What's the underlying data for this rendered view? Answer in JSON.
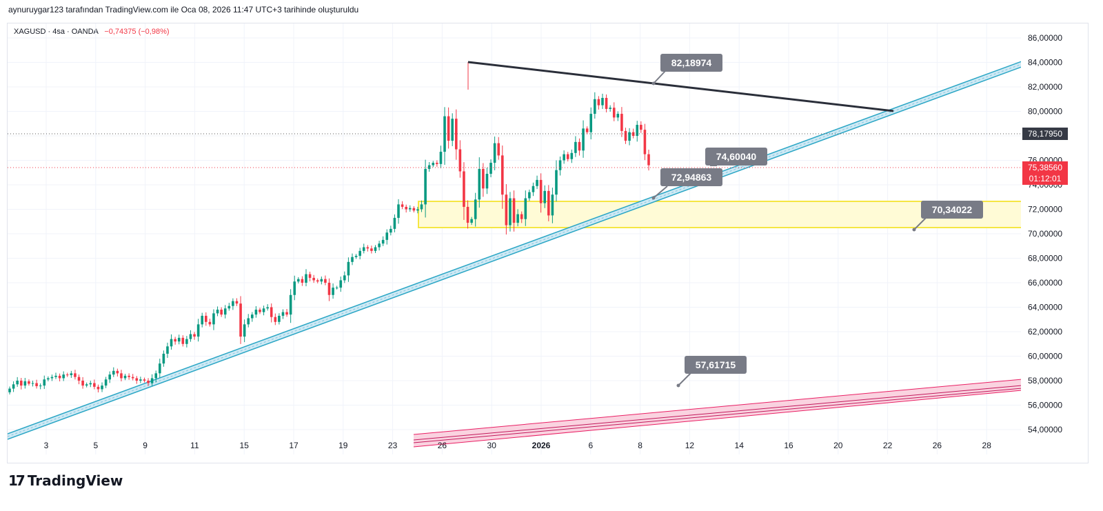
{
  "header": {
    "created_by": "aynuruygar123 tarafından TradingView.com ile Oca 08, 2026 11:47 UTC+3 tarihinde oluşturuldu"
  },
  "legend": {
    "symbol": "XAGUSD · 4sa · OANDA",
    "change": "−0,74375 (−0,98%)"
  },
  "brand": {
    "logo_mark": "17",
    "name": "TradingView"
  },
  "colors": {
    "up": "#089981",
    "down": "#f23645",
    "trend": "#2aa6c5",
    "zone": "#f5e642",
    "pink": "#e91e63",
    "label_bg": "#787b86"
  },
  "chart_data": {
    "type": "candlestick",
    "symbol": "XAGUSD",
    "interval": "4sa",
    "ylim": [
      53.5,
      87.2
    ],
    "y_ticks": [
      "54,00000",
      "56,00000",
      "58,00000",
      "60,00000",
      "62,00000",
      "64,00000",
      "66,00000",
      "68,00000",
      "70,00000",
      "72,00000",
      "74,00000",
      "76,00000",
      "78,00000",
      "80,00000",
      "82,00000",
      "84,00000",
      "86,00000"
    ],
    "x_ticks": [
      "3",
      "5",
      "9",
      "11",
      "15",
      "17",
      "19",
      "23",
      "26",
      "30",
      "2026",
      "6",
      "8",
      "12",
      "14",
      "16",
      "20",
      "22",
      "26",
      "28"
    ],
    "closes": [
      57.35,
      57.7,
      58.0,
      57.6,
      57.95,
      57.75,
      57.8,
      57.55,
      57.6,
      58.1,
      58.2,
      58.3,
      58.4,
      58.2,
      58.5,
      58.45,
      58.6,
      58.3,
      58.0,
      57.6,
      57.7,
      57.8,
      57.5,
      57.3,
      57.6,
      58.1,
      58.5,
      58.8,
      58.6,
      58.2,
      58.4,
      58.3,
      58.2,
      58.0,
      58.1,
      58.0,
      57.8,
      58.2,
      58.6,
      59.4,
      60.2,
      60.8,
      61.4,
      61.2,
      61.5,
      61.0,
      61.4,
      61.8,
      61.6,
      62.6,
      63.3,
      62.8,
      62.6,
      63.5,
      63.8,
      63.4,
      63.9,
      64.1,
      64.5,
      64.3,
      61.6,
      62.6,
      63.1,
      63.4,
      63.8,
      63.6,
      63.9,
      64.0,
      63.2,
      62.8,
      63.3,
      63.6,
      63.4,
      65.0,
      66.1,
      66.3,
      66.0,
      66.7,
      66.4,
      66.2,
      66.1,
      66.3,
      66.0,
      65.0,
      65.6,
      65.6,
      66.2,
      66.6,
      67.7,
      68.1,
      68.2,
      68.6,
      68.9,
      68.8,
      68.6,
      68.9,
      69.2,
      69.5,
      70.1,
      70.4,
      71.3,
      72.4,
      72.2,
      72.0,
      72.1,
      71.9,
      72.0,
      72.4,
      75.3,
      75.6,
      75.8,
      75.7,
      76.7,
      79.6,
      77.6,
      79.4,
      76.9,
      75.1,
      72.2,
      70.9,
      71.2,
      72.8,
      75.3,
      73.7,
      74.9,
      75.8,
      77.4,
      76.4,
      73.2,
      70.7,
      72.9,
      70.9,
      71.6,
      71.2,
      72.9,
      73.4,
      73.9,
      74.4,
      72.5,
      73.5,
      71.5,
      73.2,
      75.2,
      76.0,
      76.5,
      76.1,
      76.6,
      77.5,
      76.8,
      78.6,
      78.3,
      79.8,
      81.0,
      80.5,
      81.1,
      80.2,
      80.3,
      79.5,
      79.8,
      78.4,
      77.6,
      78.3,
      78.0,
      78.9,
      78.5,
      76.5,
      75.6
    ],
    "last_price": "75,38560",
    "countdown": "01:12:01",
    "high_marker_price": "78,17950",
    "price_labels": [
      "82,18974",
      "74,60040",
      "72,94863",
      "70,34022",
      "57,61715"
    ]
  }
}
